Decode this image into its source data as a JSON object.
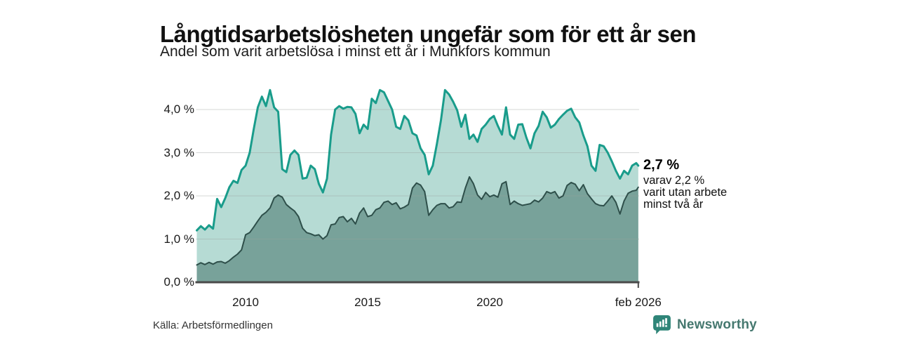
{
  "header": {
    "title": "Långtidsarbetslösheten ungefär som för ett år sen",
    "subtitle": "Andel som varit arbetslösa i minst ett år i Munkfors kommun"
  },
  "annotation": {
    "value": "2,7 %",
    "lines": [
      "varav 2,2 %",
      "varit utan arbete",
      "minst två år"
    ]
  },
  "footer": {
    "source": "Källa: Arbetsförmedlingen",
    "brand": "Newsworthy"
  },
  "colors": {
    "series1_line": "#199c8b",
    "series1_fill": "#b6dbd4",
    "series2_line": "#2e4f4a",
    "series2_fill": "#78a29a",
    "gridline": "#9aa09e",
    "axis": "#4a4a4a",
    "brand_teal": "#2f8578"
  },
  "chart_data": {
    "type": "area",
    "title": "Långtidsarbetslösheten ungefär som för ett år sen",
    "subtitle": "Andel som varit arbetslösa i minst ett år i Munkfors kommun",
    "x_unit": "decimal_year",
    "x_start_year": 2008.0,
    "x_step_years": 0.1666667,
    "x_end_year": 2026.083,
    "ylim": [
      0,
      4.6
    ],
    "grid": true,
    "legend": false,
    "yticks": [
      {
        "value": 0,
        "label": "0,0 %"
      },
      {
        "value": 1,
        "label": "1,0 %"
      },
      {
        "value": 2,
        "label": "2,0 %"
      },
      {
        "value": 3,
        "label": "3,0 %"
      },
      {
        "value": 4,
        "label": "4,0 %"
      }
    ],
    "xticks": [
      {
        "value": 2010,
        "label": "2010"
      },
      {
        "value": 2015,
        "label": "2015"
      },
      {
        "value": 2020,
        "label": "2020"
      },
      {
        "value": 2026.083,
        "label": "feb 2026"
      }
    ],
    "latest": {
      "date_label": "feb 2026",
      "unemployed_min_1yr_pct": 2.7,
      "unemployed_min_2yr_pct": 2.2
    },
    "series": [
      {
        "name": "Arbetslösa minst ett år",
        "values": [
          1.2,
          1.3,
          1.22,
          1.32,
          1.24,
          1.93,
          1.74,
          1.95,
          2.2,
          2.35,
          2.3,
          2.6,
          2.7,
          3.0,
          3.55,
          4.05,
          4.3,
          4.08,
          4.45,
          4.05,
          3.95,
          2.62,
          2.55,
          2.95,
          3.05,
          2.95,
          2.4,
          2.42,
          2.7,
          2.62,
          2.28,
          2.08,
          2.4,
          3.42,
          4.0,
          4.08,
          4.02,
          4.06,
          4.05,
          3.9,
          3.45,
          3.65,
          3.55,
          4.25,
          4.15,
          4.45,
          4.4,
          4.2,
          4.0,
          3.6,
          3.55,
          3.85,
          3.75,
          3.45,
          3.4,
          3.1,
          2.95,
          2.5,
          2.7,
          3.2,
          3.75,
          4.45,
          4.35,
          4.18,
          3.98,
          3.6,
          3.88,
          3.32,
          3.42,
          3.25,
          3.55,
          3.65,
          3.78,
          3.85,
          3.62,
          3.42,
          4.05,
          3.42,
          3.32,
          3.65,
          3.66,
          3.35,
          3.1,
          3.45,
          3.62,
          3.95,
          3.82,
          3.58,
          3.65,
          3.78,
          3.88,
          3.97,
          4.02,
          3.82,
          3.7,
          3.4,
          3.15,
          2.7,
          2.58,
          3.18,
          3.15,
          3.0,
          2.8,
          2.58,
          2.4,
          2.58,
          2.5,
          2.7,
          2.76,
          2.7
        ]
      },
      {
        "name": "Varav utan arbete minst två år",
        "values": [
          0.4,
          0.45,
          0.41,
          0.46,
          0.42,
          0.47,
          0.48,
          0.44,
          0.5,
          0.58,
          0.65,
          0.75,
          1.1,
          1.15,
          1.28,
          1.42,
          1.55,
          1.62,
          1.72,
          1.95,
          2.02,
          1.97,
          1.8,
          1.72,
          1.65,
          1.52,
          1.25,
          1.15,
          1.12,
          1.08,
          1.1,
          1.0,
          1.08,
          1.33,
          1.35,
          1.5,
          1.52,
          1.4,
          1.48,
          1.35,
          1.6,
          1.72,
          1.52,
          1.55,
          1.68,
          1.72,
          1.85,
          1.88,
          1.8,
          1.84,
          1.7,
          1.74,
          1.8,
          2.18,
          2.3,
          2.25,
          2.1,
          1.55,
          1.68,
          1.78,
          1.82,
          1.82,
          1.72,
          1.75,
          1.86,
          1.85,
          2.18,
          2.44,
          2.28,
          2.02,
          1.92,
          2.08,
          1.98,
          2.02,
          1.97,
          2.28,
          2.33,
          1.8,
          1.88,
          1.82,
          1.78,
          1.8,
          1.82,
          1.9,
          1.86,
          1.95,
          2.1,
          2.06,
          2.1,
          1.95,
          2.0,
          2.24,
          2.31,
          2.27,
          2.12,
          2.26,
          2.05,
          1.93,
          1.82,
          1.78,
          1.77,
          1.88,
          2.0,
          1.85,
          1.58,
          1.88,
          2.06,
          2.11,
          2.13,
          2.2
        ]
      }
    ]
  }
}
